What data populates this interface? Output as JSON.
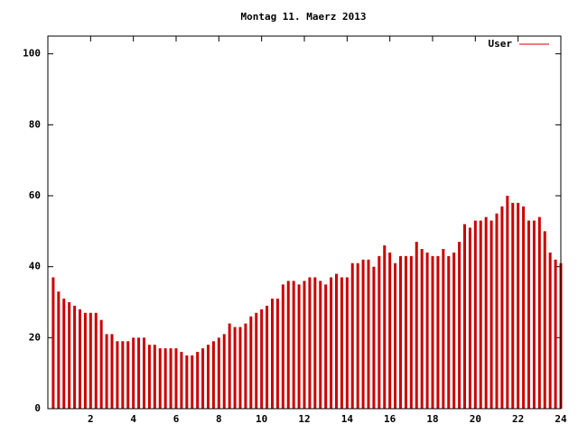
{
  "chart_data": {
    "type": "bar",
    "title": "Montag 11. Maerz 2013",
    "series": [
      {
        "name": "User",
        "color": "#cc0000",
        "x": [
          0.25,
          0.5,
          0.75,
          1,
          1.25,
          1.5,
          1.75,
          2,
          2.25,
          2.5,
          2.75,
          3,
          3.25,
          3.5,
          3.75,
          4,
          4.25,
          4.5,
          4.75,
          5,
          5.25,
          5.5,
          5.75,
          6,
          6.25,
          6.5,
          6.75,
          7,
          7.25,
          7.5,
          7.75,
          8,
          8.25,
          8.5,
          8.75,
          9,
          9.25,
          9.5,
          9.75,
          10,
          10.25,
          10.5,
          10.75,
          11,
          11.25,
          11.5,
          11.75,
          12,
          12.25,
          12.5,
          12.75,
          13,
          13.25,
          13.5,
          13.75,
          14,
          14.25,
          14.5,
          14.75,
          15,
          15.25,
          15.5,
          15.75,
          16,
          16.25,
          16.5,
          16.75,
          17,
          17.25,
          17.5,
          17.75,
          18,
          18.25,
          18.5,
          18.75,
          19,
          19.25,
          19.5,
          19.75,
          20,
          20.25,
          20.5,
          20.75,
          21,
          21.25,
          21.5,
          21.75,
          22,
          22.25,
          22.5,
          22.75,
          23,
          23.25,
          23.5,
          23.75,
          24
        ],
        "values": [
          37,
          33,
          31,
          30,
          29,
          28,
          27,
          27,
          27,
          25,
          21,
          21,
          19,
          19,
          19,
          20,
          20,
          20,
          18,
          18,
          17,
          17,
          17,
          17,
          16,
          15,
          15,
          16,
          17,
          18,
          19,
          20,
          21,
          24,
          23,
          23,
          24,
          26,
          27,
          28,
          29,
          31,
          31,
          35,
          36,
          36,
          35,
          36,
          37,
          37,
          36,
          35,
          37,
          38,
          37,
          37,
          41,
          41,
          42,
          42,
          40,
          43,
          46,
          44,
          41,
          43,
          43,
          43,
          47,
          45,
          44,
          43,
          43,
          45,
          43,
          44,
          47,
          52,
          51,
          53,
          53,
          54,
          53,
          55,
          57,
          60,
          58,
          58,
          57,
          53,
          53,
          54,
          50,
          44,
          42,
          41
        ]
      }
    ],
    "xlim": [
      0,
      24
    ],
    "xticks": [
      2,
      4,
      6,
      8,
      10,
      12,
      14,
      16,
      18,
      20,
      22,
      24
    ],
    "ylim": [
      0,
      105
    ],
    "yticks": [
      0,
      20,
      40,
      60,
      80,
      100
    ],
    "legend": "upper right"
  }
}
